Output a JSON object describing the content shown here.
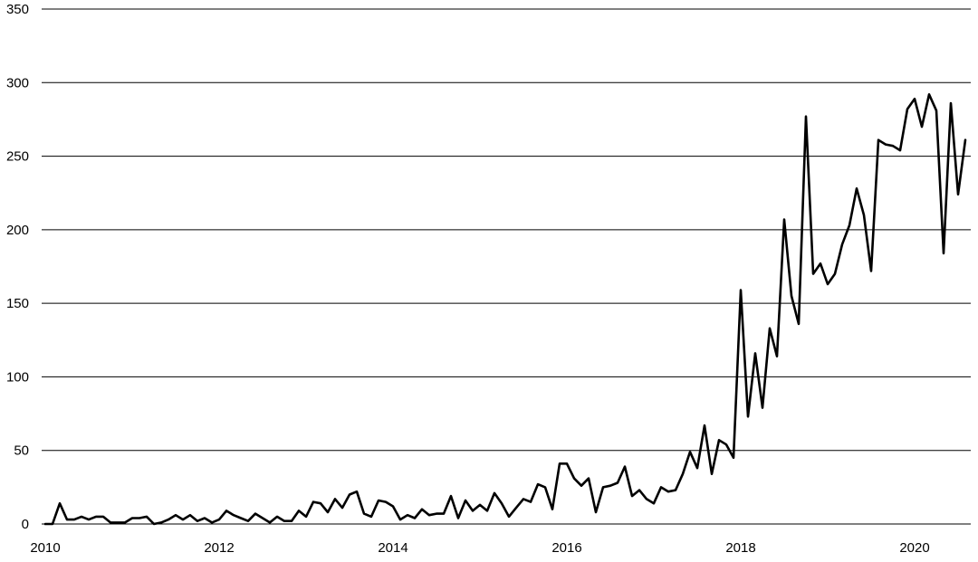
{
  "chart_data": {
    "type": "line",
    "title": "",
    "xlabel": "",
    "ylabel": "",
    "grid": true,
    "legend": "none",
    "xlim": [
      "2010-01",
      "2020-08"
    ],
    "ylim": [
      0,
      350
    ],
    "y_ticks": [
      0,
      50,
      100,
      150,
      200,
      250,
      300,
      350
    ],
    "x_ticks": [
      "2010",
      "2012",
      "2014",
      "2016",
      "2018",
      "2020"
    ],
    "colors": {
      "line": "#000000",
      "grid": "#000000",
      "background": "#ffffff"
    },
    "series": [
      {
        "x": [
          "2010-01",
          "2010-02",
          "2010-03",
          "2010-04",
          "2010-05",
          "2010-06",
          "2010-07",
          "2010-08",
          "2010-09",
          "2010-10",
          "2010-11",
          "2010-12",
          "2011-01",
          "2011-02",
          "2011-03",
          "2011-04",
          "2011-05",
          "2011-06",
          "2011-07",
          "2011-08",
          "2011-09",
          "2011-10",
          "2011-11",
          "2011-12",
          "2012-01",
          "2012-02",
          "2012-03",
          "2012-04",
          "2012-05",
          "2012-06",
          "2012-07",
          "2012-08",
          "2012-09",
          "2012-10",
          "2012-11",
          "2012-12",
          "2013-01",
          "2013-02",
          "2013-03",
          "2013-04",
          "2013-05",
          "2013-06",
          "2013-07",
          "2013-08",
          "2013-09",
          "2013-10",
          "2013-11",
          "2013-12",
          "2014-01",
          "2014-02",
          "2014-03",
          "2014-04",
          "2014-05",
          "2014-06",
          "2014-07",
          "2014-08",
          "2014-09",
          "2014-10",
          "2014-11",
          "2014-12",
          "2015-01",
          "2015-02",
          "2015-03",
          "2015-04",
          "2015-05",
          "2015-06",
          "2015-07",
          "2015-08",
          "2015-09",
          "2015-10",
          "2015-11",
          "2015-12",
          "2016-01",
          "2016-02",
          "2016-03",
          "2016-04",
          "2016-05",
          "2016-06",
          "2016-07",
          "2016-08",
          "2016-09",
          "2016-10",
          "2016-11",
          "2016-12",
          "2017-01",
          "2017-02",
          "2017-03",
          "2017-04",
          "2017-05",
          "2017-06",
          "2017-07",
          "2017-08",
          "2017-09",
          "2017-10",
          "2017-11",
          "2017-12",
          "2018-01",
          "2018-02",
          "2018-03",
          "2018-04",
          "2018-05",
          "2018-06",
          "2018-07",
          "2018-08",
          "2018-09",
          "2018-10",
          "2018-11",
          "2018-12",
          "2019-01",
          "2019-02",
          "2019-03",
          "2019-04",
          "2019-05",
          "2019-06",
          "2019-07",
          "2019-08",
          "2019-09",
          "2019-10",
          "2019-11",
          "2019-12",
          "2020-01",
          "2020-02",
          "2020-03",
          "2020-04",
          "2020-05",
          "2020-06",
          "2020-07",
          "2020-08"
        ],
        "y": [
          0,
          0,
          14,
          3,
          3,
          5,
          3,
          5,
          5,
          1,
          1,
          1,
          4,
          4,
          5,
          0,
          1,
          3,
          6,
          3,
          6,
          2,
          4,
          1,
          3,
          9,
          6,
          4,
          2,
          7,
          4,
          1,
          5,
          2,
          2,
          9,
          5,
          15,
          14,
          8,
          17,
          11,
          20,
          22,
          7,
          5,
          16,
          15,
          12,
          3,
          6,
          4,
          10,
          6,
          7,
          7,
          19,
          4,
          16,
          9,
          13,
          9,
          21,
          14,
          5,
          11,
          17,
          15,
          27,
          25,
          10,
          41,
          41,
          31,
          26,
          31,
          8,
          25,
          26,
          28,
          39,
          19,
          23,
          17,
          14,
          25,
          22,
          23,
          34,
          49,
          38,
          67,
          34,
          57,
          54,
          45,
          159,
          73,
          116,
          79,
          133,
          114,
          207,
          155,
          136,
          277,
          170,
          177,
          163,
          170,
          190,
          203,
          228,
          210,
          172,
          261,
          258,
          257,
          254,
          282,
          289,
          270,
          292,
          281,
          184,
          286,
          224,
          261
        ]
      }
    ]
  }
}
